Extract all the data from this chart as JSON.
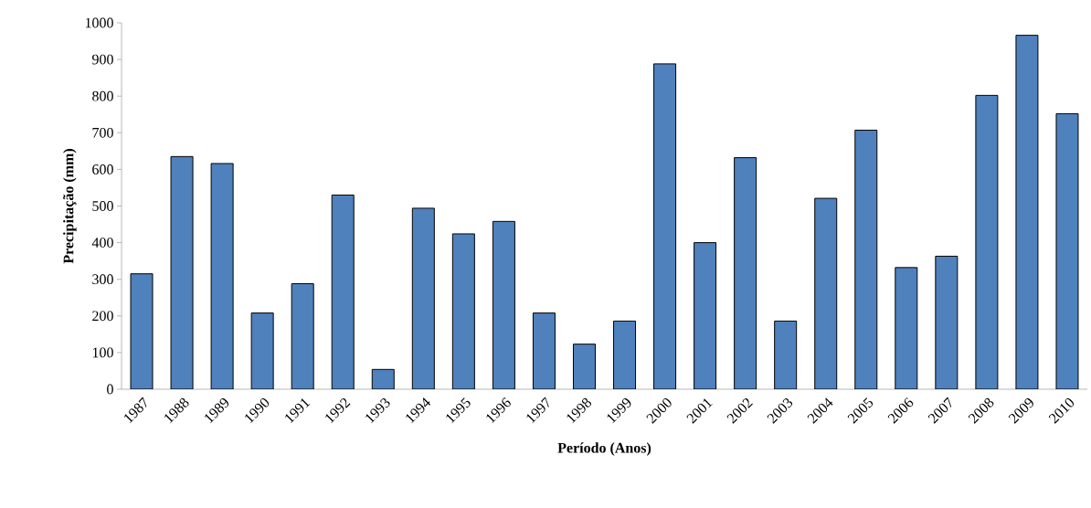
{
  "chart_data": {
    "type": "bar",
    "xlabel": "Período (Anos)",
    "ylabel": "Precipitação (mm)",
    "categories": [
      "1987",
      "1988",
      "1989",
      "1990",
      "1991",
      "1992",
      "1993",
      "1994",
      "1995",
      "1996",
      "1997",
      "1998",
      "1999",
      "2000",
      "2001",
      "2002",
      "2003",
      "2004",
      "2005",
      "2006",
      "2007",
      "2008",
      "2009",
      "2010"
    ],
    "values": [
      315,
      635,
      616,
      208,
      288,
      530,
      54,
      494,
      424,
      458,
      208,
      123,
      186,
      888,
      400,
      632,
      186,
      521,
      707,
      332,
      363,
      802,
      966,
      752
    ],
    "color": "#4f81bd",
    "ylim": [
      0,
      1000
    ],
    "yticks": [
      0,
      100,
      200,
      300,
      400,
      500,
      600,
      700,
      800,
      900,
      1000
    ],
    "grid": false
  }
}
